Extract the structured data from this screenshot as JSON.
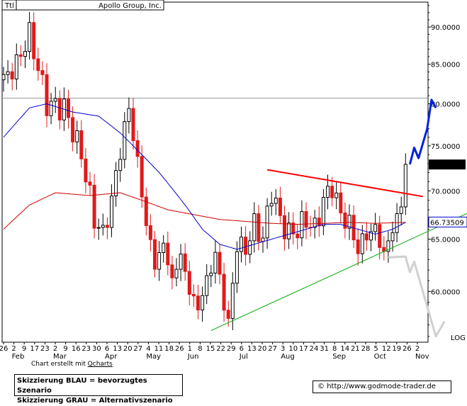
{
  "chart_data": {
    "type": "candlestick",
    "title": "Apollo Group, Inc.",
    "symbol_label": "Ttl",
    "scale": "log",
    "scale_label": "LOG",
    "ylim": [
      55.5,
      93.5
    ],
    "y_ticks": [
      60,
      65,
      70,
      75,
      80,
      85,
      90
    ],
    "y_tick_labels": [
      "60.0000",
      "65.0000",
      "70.0000",
      "75.0000",
      "80.0000",
      "85.0000",
      "90.0000"
    ],
    "x_tick_labels": [
      "26",
      "2",
      "9",
      "17",
      "23",
      "2",
      "9",
      "16",
      "23",
      "30",
      "6",
      "13",
      "20",
      "27",
      "4",
      "11",
      "18",
      "26",
      "1",
      "8",
      "15",
      "22",
      "29",
      "6",
      "13",
      "20",
      "27",
      "3",
      "10",
      "17",
      "24",
      "31",
      "8",
      "14",
      "21",
      "28",
      "5",
      "12",
      "19",
      "26",
      "2"
    ],
    "month_labels": [
      "Feb",
      "Mar",
      "Apr",
      "May",
      "Jun",
      "Jul",
      "Aug",
      "Sep",
      "Oct",
      "Nov"
    ],
    "last_price": "72.8900",
    "ma_value": "66.73509",
    "resistance_level": 80.7,
    "anchors_close": [
      [
        0,
        83.0
      ],
      [
        3,
        85.0
      ],
      [
        6,
        89.0
      ],
      [
        10,
        80.0
      ],
      [
        14,
        79.5
      ],
      [
        18,
        74.0
      ],
      [
        21,
        67.0
      ],
      [
        23,
        65.5
      ],
      [
        25,
        69.0
      ],
      [
        27,
        74.5
      ],
      [
        29,
        79.5
      ],
      [
        31,
        73.0
      ],
      [
        33,
        66.5
      ],
      [
        35,
        62.5
      ],
      [
        37,
        64.5
      ],
      [
        39,
        61.0
      ],
      [
        41,
        63.5
      ],
      [
        43,
        60.0
      ],
      [
        45,
        58.5
      ],
      [
        47,
        61.0
      ],
      [
        49,
        63.5
      ],
      [
        51,
        59.0
      ],
      [
        52,
        57.0
      ],
      [
        54,
        64.5
      ],
      [
        56,
        64.0
      ],
      [
        58,
        66.5
      ],
      [
        60,
        65.0
      ],
      [
        62,
        70.0
      ],
      [
        64,
        67.0
      ],
      [
        66,
        65.5
      ],
      [
        68,
        66.0
      ],
      [
        70,
        67.0
      ],
      [
        72,
        66.0
      ],
      [
        74,
        69.0
      ],
      [
        76,
        70.5
      ],
      [
        78,
        67.5
      ],
      [
        80,
        66.5
      ],
      [
        82,
        64.0
      ],
      [
        84,
        65.5
      ],
      [
        86,
        66.0
      ],
      [
        88,
        63.5
      ],
      [
        90,
        66.0
      ],
      [
        92,
        68.5
      ],
      [
        93,
        72.9
      ]
    ],
    "ma_short_anchors": [
      [
        0,
        76.0
      ],
      [
        6,
        79.5
      ],
      [
        10,
        80.0
      ],
      [
        16,
        79.0
      ],
      [
        22,
        78.5
      ],
      [
        27,
        76.5
      ],
      [
        31,
        74.5
      ],
      [
        36,
        72.0
      ],
      [
        42,
        68.5
      ],
      [
        46,
        66.0
      ],
      [
        50,
        64.5
      ],
      [
        54,
        64.0
      ],
      [
        58,
        64.5
      ],
      [
        62,
        65.0
      ],
      [
        66,
        65.5
      ],
      [
        70,
        66.0
      ],
      [
        74,
        66.5
      ],
      [
        78,
        66.5
      ],
      [
        82,
        66.0
      ],
      [
        86,
        65.5
      ],
      [
        90,
        66.0
      ],
      [
        93,
        66.7
      ]
    ],
    "ma_long_anchors": [
      [
        0,
        66.0
      ],
      [
        6,
        68.5
      ],
      [
        12,
        69.8
      ],
      [
        20,
        69.5
      ],
      [
        27,
        69.8
      ],
      [
        32,
        69.0
      ],
      [
        38,
        68.0
      ],
      [
        44,
        67.5
      ],
      [
        50,
        67.0
      ],
      [
        56,
        66.8
      ],
      [
        62,
        66.6
      ],
      [
        68,
        66.5
      ],
      [
        74,
        66.6
      ],
      [
        80,
        66.7
      ],
      [
        86,
        66.6
      ],
      [
        93,
        66.7
      ]
    ],
    "trend_red": [
      [
        61,
        72.3
      ],
      [
        97,
        69.4
      ]
    ],
    "trend_green": [
      [
        48,
        56.5
      ],
      [
        112,
        68.6
      ]
    ],
    "scenario_blue": [
      [
        94,
        72.9
      ],
      [
        95,
        74.8
      ],
      [
        96,
        73.6
      ],
      [
        98,
        77.0
      ],
      [
        99,
        80.5
      ],
      [
        100,
        79.5
      ]
    ],
    "scenario_gray": [
      [
        89,
        63.2
      ],
      [
        93,
        63.3
      ],
      [
        94,
        61.8
      ],
      [
        95,
        62.8
      ],
      [
        100,
        56.0
      ],
      [
        102,
        57.3
      ]
    ],
    "colors": {
      "up": "#000000",
      "down": "#e01a1a",
      "ma_short": "#0000cc",
      "ma_long": "#cc0000",
      "trend_red": "#ff0000",
      "trend_green": "#00aa00",
      "blue_scenario": "#0022dd",
      "gray_scenario": "#d0d0d0",
      "resistance": "#999999"
    }
  },
  "legend": {
    "line1": "Skizzierung BLAU = bevorzugtes Szenario",
    "line2": "Skizzierung GRAU = Alternativszenario"
  },
  "credit": {
    "prefix": "Chart erstellt mit",
    "link": "Qcharts"
  },
  "source": {
    "symbol": "©",
    "url": "http://www.godmode-trader.de"
  }
}
